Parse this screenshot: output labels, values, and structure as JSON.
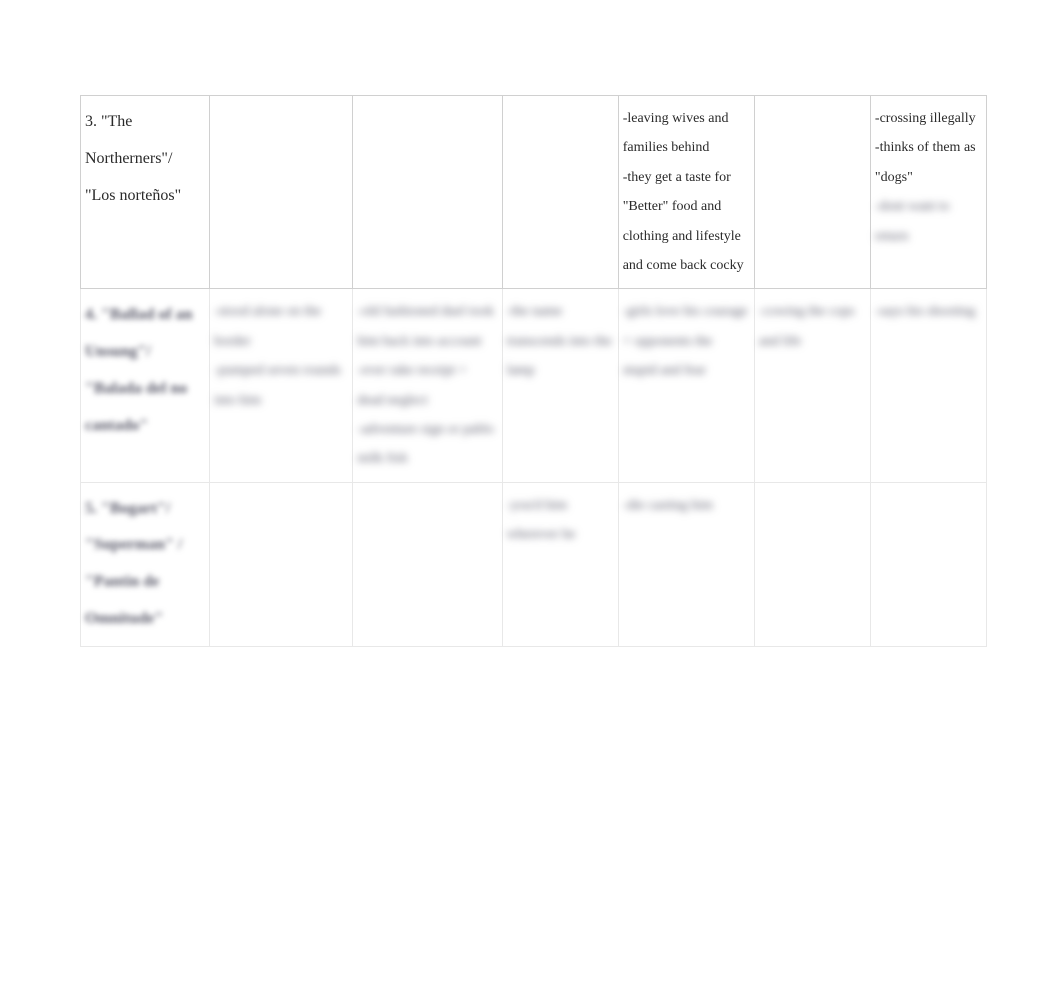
{
  "table": {
    "border_color": "#d0d0d0",
    "background": "#ffffff",
    "text_color": "#333333",
    "font_family": "Times New Roman",
    "base_fontsize": 14,
    "title_fontsize": 16,
    "blur_color": "#5a5a6a",
    "rows": [
      {
        "title": "3. \"The Northerners\"/ \"Los norteños\"",
        "title_blurred": false,
        "cells": [
          {
            "text": "",
            "blurred": false
          },
          {
            "text": "",
            "blurred": false
          },
          {
            "text": "",
            "blurred": false
          },
          {
            "text": "-leaving wives and families behind\n-they get a taste for \"Better\" food and clothing and lifestyle and come back cocky",
            "blurred": false
          },
          {
            "text": "",
            "blurred": false
          },
          {
            "text": "-crossing illegally\n-thinks of them as \"dogs\"",
            "blurred": false,
            "extra": "-dont want to return",
            "extra_blurred": true
          }
        ]
      },
      {
        "title": "4. \"Ballad of an Unsung\"/ \"Balada del no cantado\"",
        "title_blurred": true,
        "cells": [
          {
            "text": "-stood alone on the border\n-pumped seven rounds into him",
            "blurred": true
          },
          {
            "text": "-old fashioned duel took him back into account\n-ever rake receipt + dead neglect\n-adventure sign or pablo milk fish",
            "blurred": true
          },
          {
            "text": "-the name transcends into the lamp",
            "blurred": true
          },
          {
            "text": "-girls love his courage + opponents the stupid and fear",
            "blurred": true
          },
          {
            "text": "-cowing the cops and life",
            "blurred": true
          },
          {
            "text": "-says his shooting",
            "blurred": true
          }
        ]
      },
      {
        "title": "5. \"Bogart\"/ \"Superman\" / \"Pantin de Omnitude\"",
        "title_blurred": true,
        "cells": [
          {
            "text": "",
            "blurred": true
          },
          {
            "text": "",
            "blurred": true
          },
          {
            "text": "-you'd him wherever he",
            "blurred": true
          },
          {
            "text": "-die casting him",
            "blurred": true
          },
          {
            "text": "",
            "blurred": true
          },
          {
            "text": "",
            "blurred": true
          }
        ]
      }
    ]
  }
}
